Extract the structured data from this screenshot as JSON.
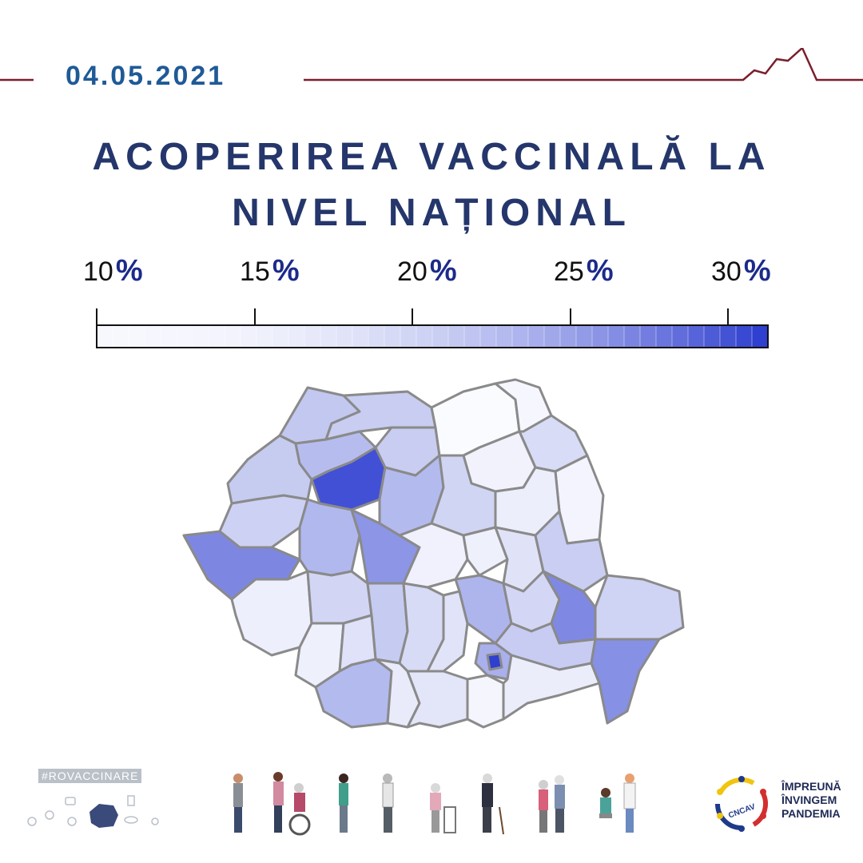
{
  "date": "04.05.2021",
  "title_line1": "ACOPERIREA VACCINALĂ LA",
  "title_line2": "NIVEL NAȚIONAL",
  "legend": {
    "ticks": [
      {
        "value": "10",
        "unit": "%"
      },
      {
        "value": "15",
        "unit": "%"
      },
      {
        "value": "20",
        "unit": "%"
      },
      {
        "value": "25",
        "unit": "%"
      },
      {
        "value": "30",
        "unit": "%"
      }
    ],
    "min_percent": 10,
    "max_percent": 31,
    "color_low": "#f7f8fe",
    "color_high": "#2f3fcf"
  },
  "map": {
    "border_color": "#8a8a8a",
    "county_coverage_shading": "relative coverage level shown by fill intensity"
  },
  "footer": {
    "hashtag": "#ROVACCINARE",
    "logo_text": "CNCAV",
    "slogan_line1": "ÎMPREUNĂ",
    "slogan_line2": "ÎNVINGEM",
    "slogan_line3": "PANDEMIA"
  },
  "colors": {
    "date": "#1f5a96",
    "title": "#24366b",
    "header_line": "#7a1f2b",
    "percent_sign": "#1c2a8a"
  }
}
